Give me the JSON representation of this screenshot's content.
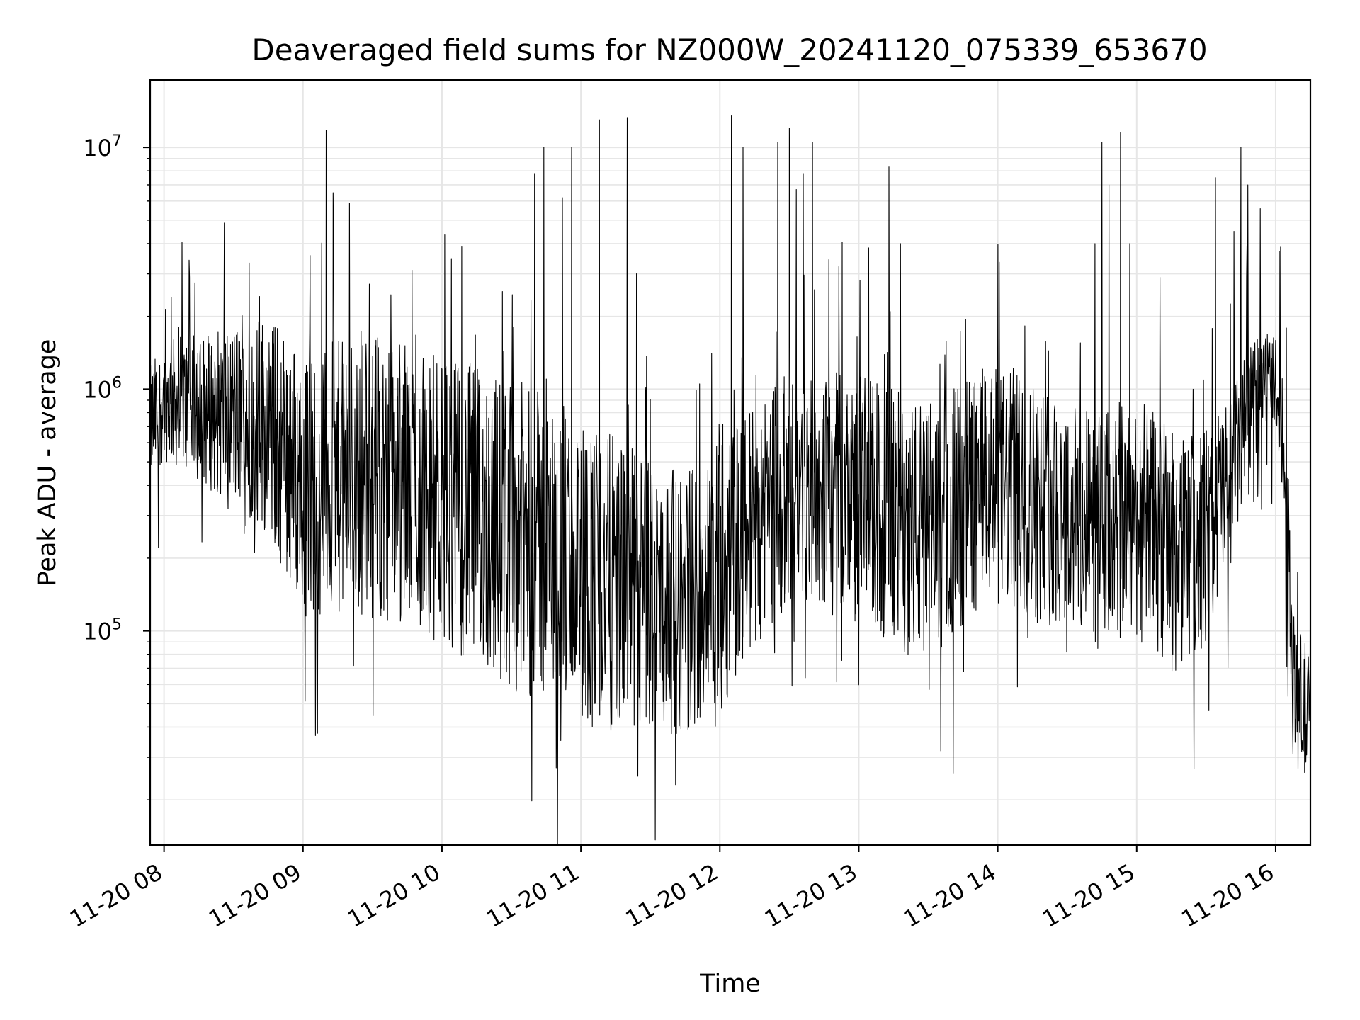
{
  "chart_data": {
    "type": "line",
    "title": "Deaveraged field sums for NZ000W_20241120_075339_653670",
    "xlabel": "Time",
    "ylabel": "Peak ADU - average",
    "yscale": "log",
    "ylim": [
      13000,
      19000000
    ],
    "xlim": [
      "2024-11-20 07:54",
      "2024-11-20 16:15"
    ],
    "x_ticks": [
      "11-20 08",
      "11-20 09",
      "11-20 10",
      "11-20 11",
      "11-20 12",
      "11-20 13",
      "11-20 14",
      "11-20 15",
      "11-20 16"
    ],
    "y_ticks": [
      {
        "base": "10",
        "exp": "5",
        "value": 100000
      },
      {
        "base": "10",
        "exp": "6",
        "value": 1000000
      },
      {
        "base": "10",
        "exp": "7",
        "value": 10000000
      }
    ],
    "grid": true,
    "line_color": "#000000",
    "grid_color": "#e6e6e6",
    "series": [
      {
        "profile_hours": [
          7.9,
          8.0,
          8.4,
          8.7,
          9.0,
          9.5,
          10.0,
          10.5,
          11.0,
          11.3,
          11.7,
          12.0,
          12.4,
          12.8,
          13.2,
          13.5,
          13.9,
          14.3,
          14.7,
          15.0,
          15.3,
          15.5,
          15.7,
          15.95,
          16.0,
          16.05,
          16.12,
          16.25
        ],
        "profile_median": [
          700000,
          900000,
          800000,
          750000,
          400000,
          450000,
          350000,
          250000,
          180000,
          150000,
          130000,
          160000,
          350000,
          400000,
          300000,
          250000,
          400000,
          350000,
          250000,
          300000,
          200000,
          250000,
          450000,
          1200000,
          1100000,
          500000,
          60000,
          40000
        ],
        "profile_spread": [
          0.25,
          0.25,
          0.35,
          0.45,
          0.55,
          0.6,
          0.6,
          0.65,
          0.65,
          0.6,
          0.55,
          0.55,
          0.5,
          0.5,
          0.55,
          0.55,
          0.5,
          0.5,
          0.5,
          0.5,
          0.5,
          0.45,
          0.35,
          0.18,
          0.18,
          0.2,
          0.3,
          0.3
        ],
        "spikes": [
          [
            "09:10",
            11800000
          ],
          [
            "09:13",
            6500000
          ],
          [
            "10:40",
            7800000
          ],
          [
            "10:44",
            10000000
          ],
          [
            "10:52",
            6200000
          ],
          [
            "10:56",
            10000000
          ],
          [
            "11:08",
            13000000
          ],
          [
            "11:20",
            13300000
          ],
          [
            "11:24",
            3000000
          ],
          [
            "12:05",
            13500000
          ],
          [
            "12:10",
            10000000
          ],
          [
            "12:25",
            10500000
          ],
          [
            "12:30",
            12000000
          ],
          [
            "12:33",
            6700000
          ],
          [
            "12:36",
            7800000
          ],
          [
            "12:40",
            10500000
          ],
          [
            "13:13",
            8300000
          ],
          [
            "13:18",
            4000000
          ],
          [
            "14:42",
            4000000
          ],
          [
            "14:45",
            10500000
          ],
          [
            "14:48",
            7000000
          ],
          [
            "14:53",
            11500000
          ],
          [
            "14:57",
            4000000
          ],
          [
            "15:34",
            7500000
          ],
          [
            "15:42",
            4500000
          ],
          [
            "15:45",
            10000000
          ],
          [
            "15:48",
            7000000
          ],
          [
            "08:11",
            2900000
          ]
        ]
      }
    ]
  }
}
